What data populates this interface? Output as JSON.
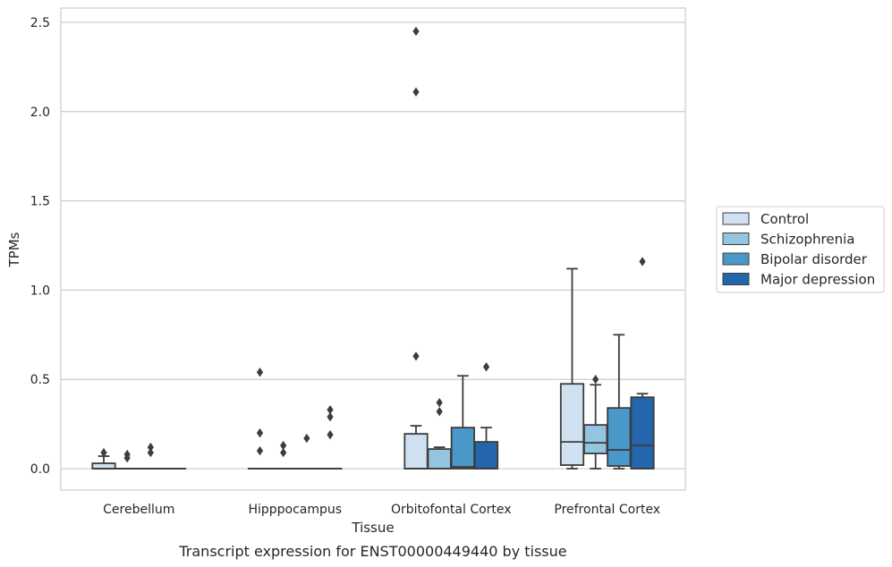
{
  "chart_data": {
    "type": "box",
    "title": "",
    "caption": "Transcript expression for ENST00000449440 by tissue",
    "xlabel": "Tissue",
    "ylabel": "TPMs",
    "ylim": [
      -0.12,
      2.58
    ],
    "yticks": [
      0.0,
      0.5,
      1.0,
      1.5,
      2.0,
      2.5
    ],
    "ytick_labels": [
      "0.0",
      "0.5",
      "1.0",
      "1.5",
      "2.0",
      "2.5"
    ],
    "categories": [
      "Cerebellum",
      "Hipppocampus",
      "Orbitofontal Cortex",
      "Prefrontal Cortex"
    ],
    "grid": "horizontal",
    "legend_placement": "right",
    "series": [
      {
        "name": "Control",
        "color": "#d0e1f2",
        "boxes": [
          {
            "q1": 0.0,
            "median": 0.0,
            "q3": 0.03,
            "whislo": 0.0,
            "whishi": 0.07,
            "fliers": [
              0.09
            ]
          },
          {
            "q1": 0.0,
            "median": 0.0,
            "q3": 0.0,
            "whislo": 0.0,
            "whishi": 0.0,
            "fliers": [
              0.1,
              0.2,
              0.54
            ]
          },
          {
            "q1": 0.0,
            "median": 0.0,
            "q3": 0.195,
            "whislo": 0.0,
            "whishi": 0.24,
            "fliers": [
              0.63,
              2.11,
              2.45
            ]
          },
          {
            "q1": 0.02,
            "median": 0.15,
            "q3": 0.475,
            "whislo": 0.0,
            "whishi": 1.12,
            "fliers": []
          }
        ]
      },
      {
        "name": "Schizophrenia",
        "color": "#94c4df",
        "boxes": [
          {
            "q1": 0.0,
            "median": 0.0,
            "q3": 0.0,
            "whislo": 0.0,
            "whishi": 0.0,
            "fliers": [
              0.06,
              0.08
            ]
          },
          {
            "q1": 0.0,
            "median": 0.0,
            "q3": 0.0,
            "whislo": 0.0,
            "whishi": 0.0,
            "fliers": [
              0.09,
              0.13
            ]
          },
          {
            "q1": 0.0,
            "median": 0.0,
            "q3": 0.11,
            "whislo": 0.0,
            "whishi": 0.12,
            "fliers": [
              0.32,
              0.37
            ]
          },
          {
            "q1": 0.085,
            "median": 0.145,
            "q3": 0.245,
            "whislo": 0.0,
            "whishi": 0.47,
            "fliers": [
              0.5
            ]
          }
        ]
      },
      {
        "name": "Bipolar disorder",
        "color": "#4a98c9",
        "boxes": [
          {
            "q1": 0.0,
            "median": 0.0,
            "q3": 0.0,
            "whislo": 0.0,
            "whishi": 0.0,
            "fliers": [
              0.09,
              0.12
            ]
          },
          {
            "q1": 0.0,
            "median": 0.0,
            "q3": 0.0,
            "whislo": 0.0,
            "whishi": 0.0,
            "fliers": [
              0.17
            ]
          },
          {
            "q1": 0.0,
            "median": 0.01,
            "q3": 0.23,
            "whislo": 0.0,
            "whishi": 0.52,
            "fliers": []
          },
          {
            "q1": 0.015,
            "median": 0.105,
            "q3": 0.34,
            "whislo": 0.0,
            "whishi": 0.75,
            "fliers": []
          }
        ]
      },
      {
        "name": "Major depression",
        "color": "#2366ab",
        "boxes": [
          {
            "q1": 0.0,
            "median": 0.0,
            "q3": 0.0,
            "whislo": 0.0,
            "whishi": 0.0,
            "fliers": []
          },
          {
            "q1": 0.0,
            "median": 0.0,
            "q3": 0.0,
            "whislo": 0.0,
            "whishi": 0.0,
            "fliers": [
              0.19,
              0.29,
              0.33
            ]
          },
          {
            "q1": 0.0,
            "median": 0.0,
            "q3": 0.15,
            "whislo": 0.0,
            "whishi": 0.23,
            "fliers": [
              0.57
            ]
          },
          {
            "q1": 0.0,
            "median": 0.13,
            "q3": 0.4,
            "whislo": 0.0,
            "whishi": 0.42,
            "fliers": [
              1.16
            ]
          }
        ]
      }
    ]
  }
}
